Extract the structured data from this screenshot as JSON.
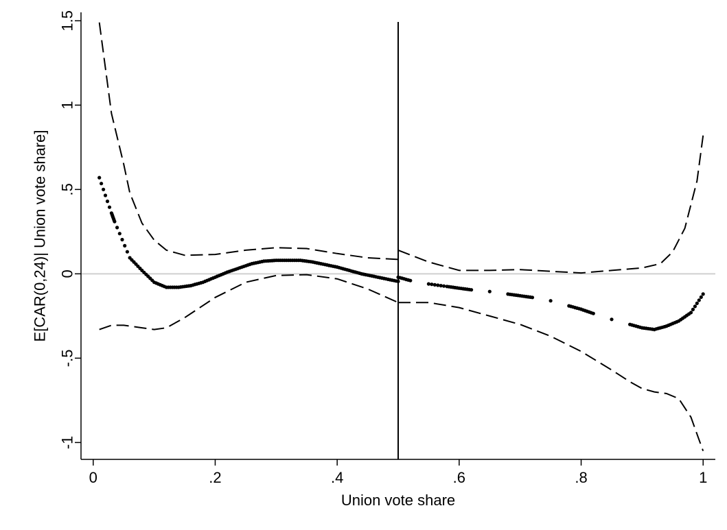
{
  "chart_data": {
    "type": "scatter",
    "title": "",
    "xlabel": "Union vote share",
    "ylabel": "E[CAR(0,24)| Union vote share]",
    "xlim": [
      -0.02,
      1.02
    ],
    "ylim": [
      -1.1,
      1.55
    ],
    "x_ticks": [
      0,
      0.2,
      0.4,
      0.6,
      0.8,
      1
    ],
    "x_tick_labels": [
      "0",
      ".2",
      ".4",
      ".6",
      ".8",
      "1"
    ],
    "y_ticks": [
      -1,
      -0.5,
      0,
      0.5,
      1,
      1.5
    ],
    "y_tick_labels": [
      "-1",
      "-.5",
      "0",
      ".5",
      "1",
      "1.5"
    ],
    "grid": false,
    "reference_lines": {
      "horizontal": 0,
      "vertical": 0.5
    },
    "colors": {
      "points": "#000000",
      "bands": "#000000",
      "zero_line": "#cfcfcf",
      "cutoff_line": "#000000"
    },
    "series": [
      {
        "style": "points",
        "segments": [
          {
            "x": [
              0.01,
              0.03,
              0.035,
              0.06,
              0.08,
              0.1,
              0.12,
              0.14,
              0.16,
              0.18,
              0.2,
              0.22,
              0.24,
              0.26,
              0.28,
              0.3,
              0.32,
              0.34,
              0.36,
              0.38,
              0.4,
              0.42,
              0.44,
              0.46,
              0.48,
              0.5
            ],
            "y": [
              0.57,
              0.36,
              0.31,
              0.095,
              0.02,
              -0.05,
              -0.08,
              -0.08,
              -0.07,
              -0.05,
              -0.02,
              0.01,
              0.035,
              0.06,
              0.075,
              0.08,
              0.08,
              0.08,
              0.07,
              0.055,
              0.04,
              0.02,
              0.0,
              -0.015,
              -0.03,
              -0.045
            ]
          },
          {
            "x": [
              0.5,
              0.52,
              0.55,
              0.58,
              0.6,
              0.62,
              0.65,
              0.68,
              0.7,
              0.72,
              0.75,
              0.78,
              0.8,
              0.82,
              0.85,
              0.88,
              0.9,
              0.92,
              0.94,
              0.96,
              0.98,
              1.0
            ],
            "y": [
              -0.02,
              -0.04,
              -0.06,
              -0.075,
              -0.085,
              -0.095,
              -0.105,
              -0.12,
              -0.13,
              -0.14,
              -0.16,
              -0.19,
              -0.21,
              -0.235,
              -0.27,
              -0.3,
              -0.32,
              -0.33,
              -0.31,
              -0.28,
              -0.23,
              -0.12
            ]
          }
        ]
      },
      {
        "style": "dashed",
        "segments": [
          {
            "x": [
              0.01,
              0.03,
              0.05,
              0.06,
              0.08,
              0.1,
              0.12,
              0.15,
              0.2,
              0.25,
              0.3,
              0.35,
              0.4,
              0.45,
              0.5
            ],
            "y": [
              1.49,
              0.95,
              0.65,
              0.48,
              0.3,
              0.2,
              0.14,
              0.11,
              0.115,
              0.14,
              0.155,
              0.15,
              0.12,
              0.095,
              0.085
            ]
          },
          {
            "x": [
              0.5,
              0.55,
              0.6,
              0.65,
              0.7,
              0.75,
              0.8,
              0.85,
              0.9,
              0.93,
              0.95,
              0.97,
              0.99,
              1.0
            ],
            "y": [
              0.14,
              0.07,
              0.02,
              0.02,
              0.025,
              0.015,
              0.005,
              0.02,
              0.035,
              0.06,
              0.13,
              0.27,
              0.55,
              0.82
            ]
          },
          {
            "x": [
              0.01,
              0.03,
              0.05,
              0.08,
              0.1,
              0.12,
              0.15,
              0.2,
              0.25,
              0.3,
              0.35,
              0.4,
              0.45,
              0.5
            ],
            "y": [
              -0.33,
              -0.305,
              -0.305,
              -0.32,
              -0.33,
              -0.32,
              -0.26,
              -0.14,
              -0.05,
              -0.01,
              -0.005,
              -0.03,
              -0.09,
              -0.17
            ]
          },
          {
            "x": [
              0.5,
              0.55,
              0.6,
              0.65,
              0.7,
              0.75,
              0.8,
              0.85,
              0.88,
              0.9,
              0.92,
              0.94,
              0.96,
              0.98,
              0.99,
              1.0
            ],
            "y": [
              -0.17,
              -0.17,
              -0.2,
              -0.25,
              -0.3,
              -0.37,
              -0.46,
              -0.57,
              -0.64,
              -0.68,
              -0.7,
              -0.71,
              -0.74,
              -0.85,
              -0.95,
              -1.05
            ]
          }
        ]
      }
    ]
  }
}
